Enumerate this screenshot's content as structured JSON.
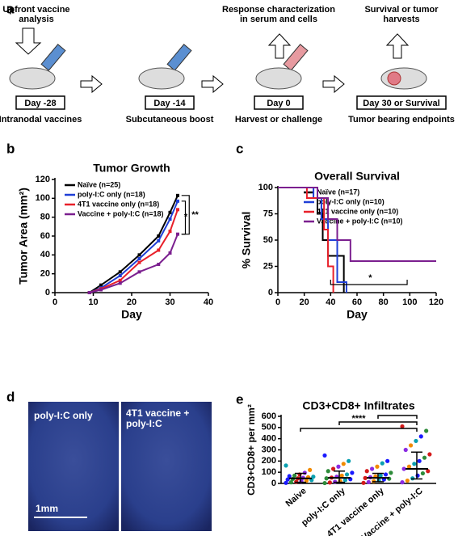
{
  "panel_labels": [
    "a",
    "b",
    "c",
    "d",
    "e"
  ],
  "panel_a": {
    "steps": [
      {
        "top": [
          "Upfront vaccine",
          "analysis"
        ],
        "day": "Day -28",
        "bottom": "Intranodal vaccines"
      },
      {
        "top": [],
        "day": "Day -14",
        "bottom": "Subcutaneous boost"
      },
      {
        "top": [
          "Response characterization",
          "in serum and cells"
        ],
        "day": "Day 0",
        "bottom": "Harvest or challenge"
      },
      {
        "top": [
          "Survival or tumor",
          "harvests"
        ],
        "day": "Day 30 or Survival",
        "bottom": "Tumor bearing endpoints"
      }
    ]
  },
  "panel_d": {
    "left_label": "poly-I:C only",
    "right_label": [
      "4T1 vaccine +",
      "poly-I:C"
    ],
    "scale_bar": "1mm"
  },
  "chart_data": [
    {
      "type": "line",
      "title": "Tumor Growth",
      "x_label": "Day",
      "y_label": "Tumor Area (mm²)",
      "xlim": [
        0,
        40
      ],
      "xticks": [
        0,
        10,
        20,
        30,
        40
      ],
      "ylim": [
        0,
        120
      ],
      "yticks": [
        0,
        20,
        40,
        60,
        80,
        100,
        120
      ],
      "x": [
        9,
        12,
        17,
        22,
        27,
        30,
        32
      ],
      "series": [
        {
          "name": "Naïve (n=25)",
          "color": "#000000",
          "values": [
            0,
            8,
            22,
            40,
            60,
            85,
            103
          ]
        },
        {
          "name": "poly-I:C only (n=18)",
          "color": "#1f3fd6",
          "values": [
            0,
            5,
            18,
            36,
            55,
            78,
            97
          ]
        },
        {
          "name": "4T1 vaccine only (n=18)",
          "color": "#e8202a",
          "values": [
            0,
            4,
            13,
            32,
            45,
            65,
            88
          ]
        },
        {
          "name": "Vaccine + poly-I:C (n=18)",
          "color": "#7b1f8f",
          "values": [
            0,
            3,
            10,
            22,
            30,
            42,
            62
          ]
        }
      ],
      "annotations": [
        "*",
        "**"
      ]
    },
    {
      "type": "step",
      "title": "Overall Survival",
      "x_label": "Day",
      "y_label": "% Survival",
      "xlim": [
        0,
        120
      ],
      "xticks": [
        0,
        20,
        40,
        60,
        80,
        100,
        120
      ],
      "ylim": [
        0,
        100
      ],
      "yticks": [
        0,
        25,
        50,
        75,
        100
      ],
      "series": [
        {
          "name": "Naïve (n=17)",
          "color": "#000000",
          "x": [
            0,
            30,
            34,
            38,
            50
          ],
          "values": [
            100,
            75,
            50,
            35,
            0
          ]
        },
        {
          "name": "poly-I:C only (n=10)",
          "color": "#1f3fd6",
          "x": [
            0,
            27,
            33,
            38,
            45,
            52
          ],
          "values": [
            100,
            90,
            70,
            50,
            10,
            0
          ]
        },
        {
          "name": "4T1 vaccine only (n=10)",
          "color": "#e8202a",
          "x": [
            0,
            22,
            35,
            38,
            42
          ],
          "values": [
            100,
            90,
            60,
            25,
            0
          ]
        },
        {
          "name": "Vaccine + poly-I:C (n=10)",
          "color": "#7b1f8f",
          "x": [
            0,
            30,
            38,
            45,
            55,
            120
          ],
          "values": [
            100,
            90,
            70,
            50,
            30,
            30
          ]
        }
      ],
      "annotations": [
        "*"
      ]
    },
    {
      "type": "scatter",
      "title": "CD3+CD8+ Infiltrates",
      "y_label": "CD3+CD8+ per mm²",
      "ylim": [
        0,
        600
      ],
      "yticks": [
        0,
        100,
        200,
        300,
        400,
        500,
        600
      ],
      "categories": [
        "Naive",
        "poly-I:C only",
        "4T1 vaccine only",
        "Vaccine + poly-I:C"
      ],
      "point_colors": [
        "#1a1aff",
        "#2e8b3a",
        "#d41a1a",
        "#8a2be2",
        "#f28a00",
        "#0aa0b0"
      ],
      "series": [
        {
          "values": [
            5,
            10,
            15,
            20,
            25,
            30,
            35,
            40,
            45,
            50,
            55,
            60,
            65,
            70,
            80,
            95,
            120,
            160
          ]
        },
        {
          "values": [
            3,
            8,
            15,
            22,
            30,
            38,
            45,
            52,
            60,
            70,
            80,
            95,
            110,
            130,
            150,
            175,
            200,
            250
          ]
        },
        {
          "values": [
            5,
            12,
            20,
            28,
            35,
            42,
            48,
            55,
            62,
            70,
            80,
            95,
            110,
            130,
            150,
            180,
            200
          ]
        },
        {
          "values": [
            10,
            25,
            45,
            70,
            90,
            110,
            130,
            150,
            175,
            200,
            230,
            260,
            300,
            340,
            380,
            420,
            470,
            510
          ]
        }
      ],
      "median": [
        45,
        50,
        50,
        130
      ],
      "upper": [
        90,
        110,
        90,
        280
      ],
      "lower": [
        10,
        10,
        15,
        40
      ],
      "annotations": [
        "****"
      ]
    }
  ]
}
